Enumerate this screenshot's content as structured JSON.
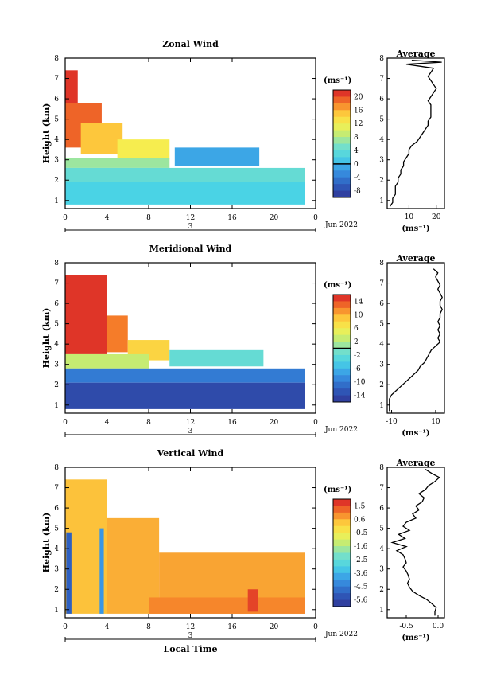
{
  "chart_data": [
    {
      "type": "heatmap",
      "title": "Zonal Wind",
      "ylabel": "Height (km)",
      "xlabel": "",
      "x_ticks": [
        "0",
        "4",
        "8",
        "12",
        "16",
        "20",
        "0"
      ],
      "y_ticks": [
        "1",
        "2",
        "3",
        "4",
        "5",
        "6",
        "7",
        "8"
      ],
      "xlim": [
        0,
        24
      ],
      "ylim": [
        0.6,
        8
      ],
      "day_label": "3",
      "date_label": "Jun 2022",
      "colorbar": {
        "unit": "(ms⁻¹)",
        "min": -10,
        "max": 22,
        "ticks": [
          "20",
          "16",
          "12",
          "8",
          "4",
          "0",
          "-4",
          "-8"
        ],
        "ref_value": 0
      },
      "average_profile": {
        "title": "Average",
        "xlabel": "(ms⁻¹)",
        "x_ticks": [
          "10",
          "20"
        ],
        "xlim": [
          2,
          23
        ],
        "height": [
          0.7,
          0.9,
          1.1,
          1.3,
          1.5,
          1.7,
          1.9,
          2.1,
          2.3,
          2.5,
          2.7,
          2.9,
          3.1,
          3.3,
          3.5,
          3.7,
          3.9,
          4.1,
          4.3,
          4.5,
          4.7,
          4.9,
          5.1,
          5.3,
          5.5,
          5.7,
          5.9,
          6.1,
          6.3,
          6.5,
          6.7,
          6.9,
          7.1,
          7.3,
          7.5,
          7.6,
          7.7,
          7.8,
          7.9
        ],
        "values": [
          3,
          4,
          4,
          5,
          5,
          5,
          6,
          6,
          7,
          7,
          8,
          8,
          9,
          10,
          10,
          11,
          13,
          14,
          15,
          16,
          17,
          17,
          18,
          18,
          18,
          18,
          17,
          18,
          19,
          20,
          19,
          18,
          17,
          18,
          19,
          14,
          9,
          22,
          11
        ]
      },
      "field": {
        "regions": [
          {
            "t0": 0,
            "t1": 1.2,
            "h0": 4.8,
            "h1": 7.4,
            "value": 21
          },
          {
            "t0": 0,
            "t1": 3.5,
            "h0": 3.6,
            "h1": 5.8,
            "value": 19
          },
          {
            "t0": 1.5,
            "t1": 5.5,
            "h0": 3.3,
            "h1": 4.8,
            "value": 15
          },
          {
            "t0": 5,
            "t1": 10,
            "h0": 3.0,
            "h1": 4.0,
            "value": 12
          },
          {
            "t0": 0,
            "t1": 10,
            "h0": 2.6,
            "h1": 3.1,
            "value": 7
          },
          {
            "t0": 0,
            "t1": 23,
            "h0": 1.9,
            "h1": 2.6,
            "value": 4
          },
          {
            "t0": 0,
            "t1": 23,
            "h0": 0.8,
            "h1": 1.9,
            "value": 2
          },
          {
            "t0": 10.5,
            "t1": 18.6,
            "h0": 2.7,
            "h1": 3.6,
            "value": -1
          }
        ]
      }
    },
    {
      "type": "heatmap",
      "title": "Meridional Wind",
      "ylabel": "Height (km)",
      "xlabel": "",
      "x_ticks": [
        "0",
        "4",
        "8",
        "12",
        "16",
        "20",
        "0"
      ],
      "y_ticks": [
        "1",
        "2",
        "3",
        "4",
        "5",
        "6",
        "7",
        "8"
      ],
      "xlim": [
        0,
        24
      ],
      "ylim": [
        0.6,
        8
      ],
      "day_label": "3",
      "date_label": "Jun 2022",
      "colorbar": {
        "unit": "(ms⁻¹)",
        "min": -16,
        "max": 16,
        "ticks": [
          "14",
          "10",
          "6",
          "2",
          "-2",
          "-6",
          "-10",
          "-14"
        ],
        "ref_value": 0
      },
      "average_profile": {
        "title": "Average",
        "xlabel": "(ms⁻¹)",
        "x_ticks": [
          "-10",
          "10"
        ],
        "xlim": [
          -12,
          14
        ],
        "height": [
          0.7,
          0.9,
          1.1,
          1.3,
          1.5,
          1.7,
          1.9,
          2.1,
          2.3,
          2.5,
          2.7,
          2.9,
          3.1,
          3.3,
          3.5,
          3.7,
          3.9,
          4.1,
          4.3,
          4.5,
          4.7,
          4.9,
          5.1,
          5.3,
          5.5,
          5.7,
          5.9,
          6.1,
          6.3,
          6.5,
          6.7,
          6.9,
          7.1,
          7.3,
          7.5,
          7.7
        ],
        "values": [
          -11,
          -11,
          -11,
          -11,
          -10,
          -8,
          -6,
          -4,
          -2,
          0,
          2,
          3,
          5,
          6,
          7,
          8,
          10,
          12,
          11,
          12,
          11,
          12,
          11,
          12,
          12,
          13,
          12,
          12,
          13,
          12,
          11,
          12,
          11,
          10,
          11,
          9
        ]
      },
      "field": {
        "regions": [
          {
            "t0": 0,
            "t1": 4,
            "h0": 3.5,
            "h1": 7.4,
            "value": 15
          },
          {
            "t0": 4,
            "t1": 6,
            "h0": 3.6,
            "h1": 5.4,
            "value": 12
          },
          {
            "t0": 6,
            "t1": 10,
            "h0": 3.2,
            "h1": 4.2,
            "value": 8
          },
          {
            "t0": 0,
            "t1": 8,
            "h0": 2.8,
            "h1": 3.5,
            "value": 3
          },
          {
            "t0": 10,
            "t1": 19,
            "h0": 2.9,
            "h1": 3.7,
            "value": -2
          },
          {
            "t0": 0,
            "t1": 23,
            "h0": 2.1,
            "h1": 2.8,
            "value": -10
          },
          {
            "t0": 0,
            "t1": 23,
            "h0": 0.8,
            "h1": 2.1,
            "value": -14
          }
        ]
      }
    },
    {
      "type": "heatmap",
      "title": "Vertical Wind",
      "ylabel": "Height (km)",
      "xlabel": "Local Time",
      "x_ticks": [
        "0",
        "4",
        "8",
        "12",
        "16",
        "20",
        "0"
      ],
      "y_ticks": [
        "1",
        "2",
        "3",
        "4",
        "5",
        "6",
        "7",
        "8"
      ],
      "xlim": [
        0,
        24
      ],
      "ylim": [
        0.6,
        8
      ],
      "day_label": "3",
      "date_label": "Jun 2022",
      "colorbar": {
        "unit": "(ms⁻¹)",
        "min": -6.0,
        "max": 2.0,
        "ticks": [
          "1.5",
          "0.6",
          "-0.5",
          "-1.6",
          "-2.5",
          "-3.6",
          "-4.5",
          "-5.6"
        ],
        "ref_value": null
      },
      "average_profile": {
        "title": "Average",
        "xlabel": "(ms⁻¹)",
        "x_ticks": [
          "-0.5",
          "0.0"
        ],
        "xlim": [
          -0.8,
          0.1
        ],
        "height": [
          0.7,
          0.9,
          1.1,
          1.3,
          1.5,
          1.7,
          1.9,
          2.1,
          2.3,
          2.5,
          2.7,
          2.9,
          3.1,
          3.3,
          3.5,
          3.7,
          3.9,
          4.1,
          4.3,
          4.5,
          4.7,
          4.9,
          5.1,
          5.3,
          5.5,
          5.7,
          5.9,
          6.1,
          6.3,
          6.5,
          6.7,
          6.9,
          7.1,
          7.3,
          7.5,
          7.7,
          7.9
        ],
        "values": [
          -0.05,
          -0.05,
          -0.03,
          -0.1,
          -0.18,
          -0.3,
          -0.4,
          -0.45,
          -0.48,
          -0.45,
          -0.47,
          -0.5,
          -0.55,
          -0.5,
          -0.52,
          -0.55,
          -0.65,
          -0.5,
          -0.72,
          -0.52,
          -0.62,
          -0.45,
          -0.55,
          -0.5,
          -0.35,
          -0.4,
          -0.3,
          -0.35,
          -0.25,
          -0.22,
          -0.3,
          -0.2,
          -0.15,
          -0.05,
          0.02,
          -0.1,
          -0.2
        ]
      },
      "field": {
        "regions": [
          {
            "t0": 0,
            "t1": 4,
            "h0": 0.8,
            "h1": 7.4,
            "value": 0.3
          },
          {
            "t0": 4,
            "t1": 9,
            "h0": 0.8,
            "h1": 5.5,
            "value": 0.5
          },
          {
            "t0": 9,
            "t1": 23,
            "h0": 0.8,
            "h1": 3.8,
            "value": 0.6
          },
          {
            "t0": 8,
            "t1": 23,
            "h0": 0.8,
            "h1": 1.6,
            "value": 0.9
          },
          {
            "t0": 17.5,
            "t1": 18.5,
            "h0": 0.9,
            "h1": 2.0,
            "value": 1.6
          },
          {
            "t0": 0.1,
            "t1": 0.6,
            "h0": 0.8,
            "h1": 4.8,
            "value": -5.0
          },
          {
            "t0": 3.3,
            "t1": 3.7,
            "h0": 0.8,
            "h1": 5.0,
            "value": -4.0
          }
        ]
      }
    }
  ]
}
